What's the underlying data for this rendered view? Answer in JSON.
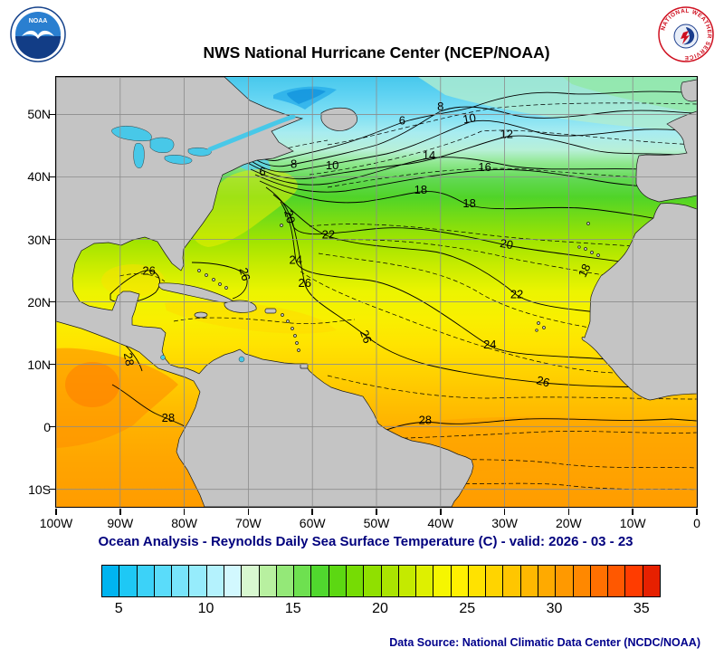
{
  "header": {
    "title": "NWS National Hurricane Center (NCEP/NOAA)"
  },
  "logos": {
    "noaa": {
      "label": "NOAA"
    },
    "nws": {
      "ring_text": "NATIONAL WEATHER SERVICE"
    }
  },
  "footer": {
    "caption": "Ocean Analysis - Reynolds Daily Sea Surface Temperature (C) - valid: 2026 - 03 - 23",
    "data_source": "Data Source: National Climatic Data Center (NCDC/NOAA)"
  },
  "chart_data": {
    "type": "heatmap",
    "title": "NWS National Hurricane Center (NCEP/NOAA)",
    "caption": "Ocean Analysis - Reynolds Daily Sea Surface Temperature (C) - valid: 2026 - 03 - 23",
    "units": "C",
    "valid_date": "2026 - 03 - 23",
    "lon_range_deg": [
      -100,
      0
    ],
    "lat_range_deg": [
      -12.8,
      56
    ],
    "grid": true,
    "x_ticks": [
      {
        "label": "100W",
        "lon": -100
      },
      {
        "label": "90W",
        "lon": -90
      },
      {
        "label": "80W",
        "lon": -80
      },
      {
        "label": "70W",
        "lon": -70
      },
      {
        "label": "60W",
        "lon": -60
      },
      {
        "label": "50W",
        "lon": -50
      },
      {
        "label": "40W",
        "lon": -40
      },
      {
        "label": "30W",
        "lon": -30
      },
      {
        "label": "20W",
        "lon": -20
      },
      {
        "label": "10W",
        "lon": -10
      },
      {
        "label": "0",
        "lon": 0
      }
    ],
    "y_ticks": [
      {
        "label": "50N",
        "lat": 50
      },
      {
        "label": "40N",
        "lat": 40
      },
      {
        "label": "30N",
        "lat": 30
      },
      {
        "label": "20N",
        "lat": 20
      },
      {
        "label": "10N",
        "lat": 10
      },
      {
        "label": "0",
        "lat": 0
      },
      {
        "label": "10S",
        "lat": -10
      }
    ],
    "contour_levels_c": [
      6,
      8,
      10,
      12,
      14,
      16,
      18,
      20,
      22,
      24,
      26,
      28
    ],
    "contour_labels": [
      {
        "text": "6",
        "lon": -46,
        "lat": 49,
        "rot": 0
      },
      {
        "text": "8",
        "lon": -40,
        "lat": 51.2,
        "rot": 0
      },
      {
        "text": "10",
        "lon": -35.5,
        "lat": 49.3,
        "rot": -10
      },
      {
        "text": "12",
        "lon": -29.7,
        "lat": 46.8,
        "rot": 0
      },
      {
        "text": "14",
        "lon": -41.8,
        "lat": 43.4,
        "rot": 0
      },
      {
        "text": "16",
        "lon": -33.1,
        "lat": 41.5,
        "rot": 0
      },
      {
        "text": "18",
        "lon": -43.1,
        "lat": 37.9,
        "rot": 0
      },
      {
        "text": "18",
        "lon": -35.5,
        "lat": 35.7,
        "rot": 0
      },
      {
        "text": "6",
        "lon": -67.8,
        "lat": 40.8,
        "rot": 0
      },
      {
        "text": "8",
        "lon": -62.9,
        "lat": 42,
        "rot": 0
      },
      {
        "text": "10",
        "lon": -56.9,
        "lat": 41.8,
        "rot": 0
      },
      {
        "text": "20",
        "lon": -63.6,
        "lat": 33.6,
        "rot": 75
      },
      {
        "text": "20",
        "lon": -29.7,
        "lat": 29.2,
        "rot": 10
      },
      {
        "text": "22",
        "lon": -57.5,
        "lat": 30.7,
        "rot": 0
      },
      {
        "text": "22",
        "lon": -28.1,
        "lat": 21.2,
        "rot": 0
      },
      {
        "text": "24",
        "lon": -62.6,
        "lat": 26.7,
        "rot": 0
      },
      {
        "text": "24",
        "lon": -32.3,
        "lat": 13.1,
        "rot": 0
      },
      {
        "text": "26",
        "lon": -70.6,
        "lat": 24.4,
        "rot": 75
      },
      {
        "text": "26",
        "lon": -85.5,
        "lat": 24.9,
        "rot": 0
      },
      {
        "text": "26",
        "lon": -61.2,
        "lat": 23,
        "rot": 0
      },
      {
        "text": "26",
        "lon": -51.7,
        "lat": 14.4,
        "rot": 70
      },
      {
        "text": "26",
        "lon": -24,
        "lat": 7.2,
        "rot": 15
      },
      {
        "text": "28",
        "lon": -82.5,
        "lat": 1.4,
        "rot": 0
      },
      {
        "text": "28",
        "lon": -42.4,
        "lat": 1,
        "rot": 0
      },
      {
        "text": "28",
        "lon": -88.7,
        "lat": 10.8,
        "rot": 80
      },
      {
        "text": "18",
        "lon": -17.5,
        "lat": 25,
        "rot": -65
      }
    ],
    "colorbar": {
      "min_c": 4,
      "max_c": 36,
      "tick_values": [
        5,
        10,
        15,
        20,
        25,
        30,
        35
      ],
      "colors": [
        "#00b4f0",
        "#1ec8f5",
        "#3cd2f8",
        "#5adcfa",
        "#78e4fb",
        "#96ecfc",
        "#b4f2fd",
        "#d2f8fe",
        "#d8f8d0",
        "#b8f0a0",
        "#94e878",
        "#6ee050",
        "#50d82e",
        "#5cd812",
        "#76dc04",
        "#90e000",
        "#aae400",
        "#c4ea00",
        "#def000",
        "#f6f600",
        "#fff000",
        "#ffe200",
        "#ffd400",
        "#ffc600",
        "#ffb800",
        "#ffaa00",
        "#ff9900",
        "#ff8800",
        "#ff7000",
        "#ff5800",
        "#ff3c00",
        "#e62000"
      ]
    }
  }
}
